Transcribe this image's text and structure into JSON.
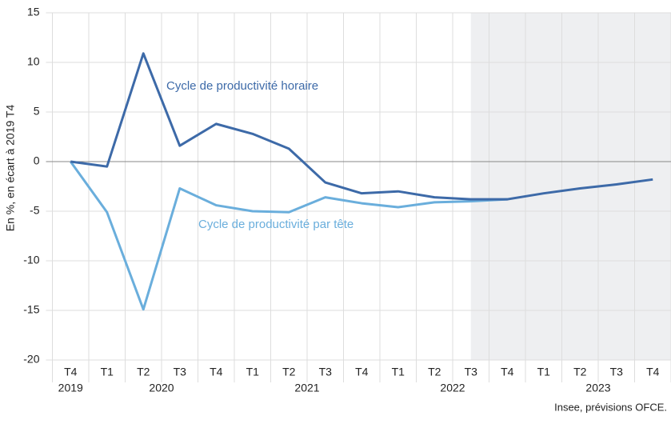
{
  "chart_data": {
    "type": "line",
    "ylabel": "En %, en écart à 2019 T4",
    "source": "Insee, prévisions OFCE.",
    "categories": [
      "T4",
      "T1",
      "T2",
      "T3",
      "T4",
      "T1",
      "T2",
      "T3",
      "T4",
      "T1",
      "T2",
      "T3",
      "T4",
      "T1",
      "T2",
      "T3",
      "T4"
    ],
    "year_groups": [
      {
        "label": "2019",
        "start": 0,
        "end": 0
      },
      {
        "label": "2020",
        "start": 1,
        "end": 4
      },
      {
        "label": "2021",
        "start": 5,
        "end": 8
      },
      {
        "label": "2022",
        "start": 9,
        "end": 12
      },
      {
        "label": "2023",
        "start": 13,
        "end": 16
      }
    ],
    "forecast_start_index": 11,
    "series": [
      {
        "name": "Cycle de productivité horaire",
        "color": "#3d6aa8",
        "values": [
          0,
          -0.5,
          10.9,
          1.6,
          3.8,
          2.8,
          1.3,
          -2.1,
          -3.2,
          -3.0,
          -3.6,
          -3.8,
          -3.8,
          -3.2,
          -2.7,
          -2.3,
          -1.8
        ]
      },
      {
        "name": "Cycle de productivité par tête",
        "color": "#6aaedc",
        "values": [
          0,
          -5.1,
          -14.9,
          -2.7,
          -4.4,
          -5.0,
          -5.1,
          -3.6,
          -4.2,
          -4.6,
          -4.1,
          -4.0,
          -3.8,
          null,
          null,
          null,
          null
        ]
      }
    ],
    "ylim": [
      -20,
      15
    ],
    "yticks": [
      -20,
      -15,
      -10,
      -5,
      0,
      5,
      10,
      15
    ],
    "grid": true
  }
}
